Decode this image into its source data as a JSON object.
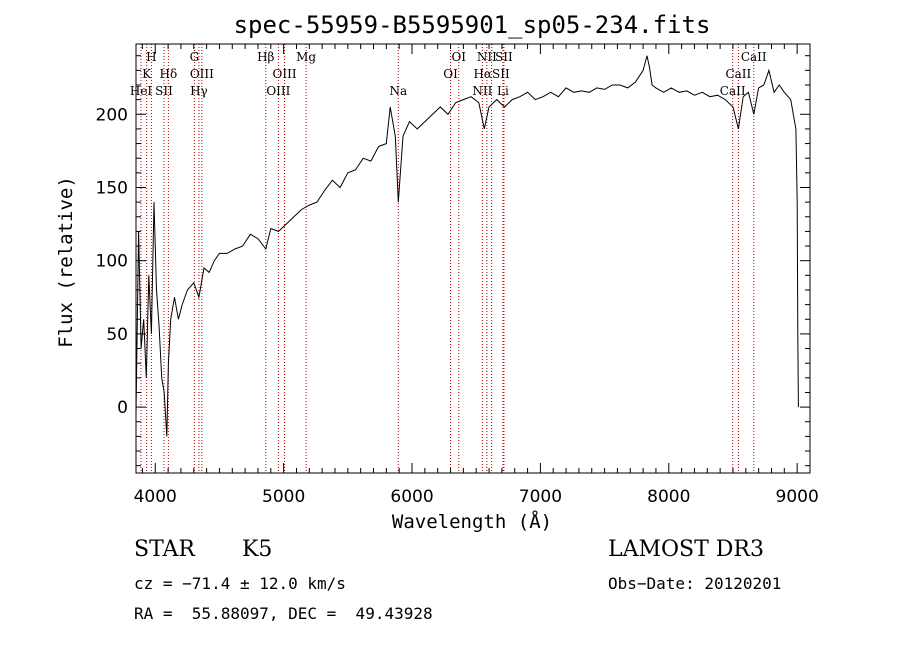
{
  "chart_data": {
    "type": "line",
    "title": "spec-55959-B5595901_sp05-234.fits",
    "xlabel": "Wavelength (Å)",
    "ylabel": "Flux (relative)",
    "xlim": [
      3850,
      9100
    ],
    "ylim": [
      -45,
      248
    ],
    "xticks": [
      4000,
      5000,
      6000,
      7000,
      8000,
      9000
    ],
    "yticks": [
      0,
      50,
      100,
      150,
      200
    ],
    "series": [
      {
        "name": "spectrum",
        "x": [
          3850,
          3870,
          3890,
          3910,
          3930,
          3950,
          3970,
          3990,
          4010,
          4030,
          4050,
          4070,
          4090,
          4102,
          4120,
          4150,
          4180,
          4210,
          4250,
          4300,
          4340,
          4380,
          4420,
          4460,
          4500,
          4560,
          4620,
          4680,
          4740,
          4800,
          4861,
          4900,
          4960,
          5020,
          5080,
          5140,
          5200,
          5260,
          5320,
          5380,
          5440,
          5500,
          5560,
          5620,
          5680,
          5740,
          5800,
          5830,
          5870,
          5893,
          5930,
          5980,
          6040,
          6100,
          6160,
          6220,
          6280,
          6340,
          6400,
          6460,
          6520,
          6563,
          6600,
          6660,
          6720,
          6780,
          6840,
          6900,
          6960,
          7020,
          7080,
          7140,
          7200,
          7260,
          7320,
          7380,
          7440,
          7500,
          7560,
          7620,
          7680,
          7740,
          7800,
          7830,
          7850,
          7870,
          7900,
          7960,
          8020,
          8080,
          8140,
          8200,
          8260,
          8320,
          8380,
          8440,
          8500,
          8542,
          8580,
          8620,
          8662,
          8700,
          8740,
          8780,
          8820,
          8860,
          8900,
          8950,
          8990,
          9000,
          9005,
          9010
        ],
        "y": [
          -5,
          120,
          40,
          60,
          20,
          90,
          50,
          140,
          80,
          55,
          20,
          10,
          -20,
          30,
          60,
          75,
          60,
          70,
          80,
          85,
          75,
          95,
          92,
          100,
          105,
          105,
          108,
          110,
          118,
          115,
          108,
          122,
          120,
          125,
          130,
          135,
          138,
          140,
          148,
          155,
          150,
          160,
          162,
          170,
          168,
          178,
          180,
          205,
          185,
          140,
          185,
          195,
          190,
          195,
          200,
          205,
          200,
          208,
          210,
          212,
          208,
          190,
          205,
          210,
          205,
          210,
          212,
          215,
          210,
          212,
          215,
          212,
          218,
          215,
          216,
          215,
          218,
          217,
          220,
          220,
          218,
          222,
          230,
          240,
          232,
          220,
          218,
          215,
          218,
          215,
          216,
          213,
          215,
          212,
          213,
          210,
          205,
          190,
          212,
          215,
          200,
          218,
          220,
          230,
          215,
          220,
          215,
          210,
          190,
          140,
          50,
          0
        ]
      }
    ],
    "lines": [
      {
        "label": "H",
        "x": 3970,
        "row": 0
      },
      {
        "label": "K",
        "x": 3933,
        "row": 1
      },
      {
        "label": "HeI",
        "x": 3889,
        "row": 2
      },
      {
        "label": "SII",
        "x": 4068,
        "row": 2
      },
      {
        "label": "Hδ",
        "x": 4102,
        "row": 1
      },
      {
        "label": "G",
        "x": 4305,
        "row": 0
      },
      {
        "label": "OIII",
        "x": 4363,
        "row": 1
      },
      {
        "label": "Hγ",
        "x": 4340,
        "row": 2
      },
      {
        "label": "Hβ",
        "x": 4861,
        "row": 0
      },
      {
        "label": "OIII",
        "x": 5007,
        "row": 1
      },
      {
        "label": "OIII",
        "x": 4959,
        "row": 2
      },
      {
        "label": "Mg",
        "x": 5175,
        "row": 0
      },
      {
        "label": "Na",
        "x": 5893,
        "row": 2
      },
      {
        "label": "OI",
        "x": 6364,
        "row": 0
      },
      {
        "label": "OI",
        "x": 6300,
        "row": 1
      },
      {
        "label": "NII",
        "x": 6583,
        "row": 0
      },
      {
        "label": "SII",
        "x": 6716,
        "row": 0
      },
      {
        "label": "HαSII",
        "x": 6620,
        "row": 1
      },
      {
        "label": "NII",
        "x": 6548,
        "row": 2
      },
      {
        "label": "Li",
        "x": 6708,
        "row": 2
      },
      {
        "label": "CaII",
        "x": 8662,
        "row": 0
      },
      {
        "label": "CaII",
        "x": 8542,
        "row": 1
      },
      {
        "label": "CaII",
        "x": 8498,
        "row": 2
      }
    ],
    "colors": {
      "line": "#000000",
      "marker": "#b00000"
    }
  },
  "info": {
    "object_class": "STAR",
    "subclass": "K5",
    "redshift": "cz = −71.4 ± 12.0 km/s",
    "coords": "RA =  55.88097, DEC =  49.43928",
    "survey": "LAMOST DR3",
    "obs_date": "Obs−Date: 20120201"
  }
}
